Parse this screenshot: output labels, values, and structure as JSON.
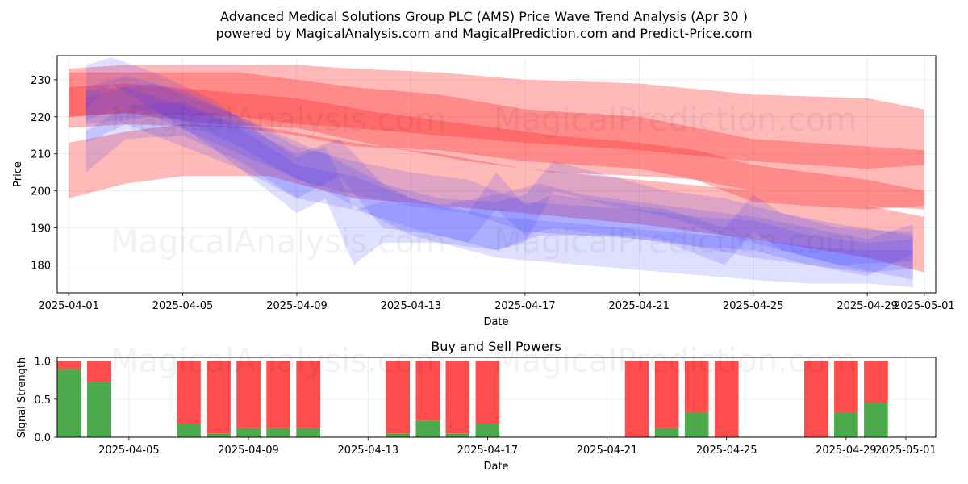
{
  "chart_data": [
    {
      "type": "area",
      "title_line1": "Advanced Medical Solutions Group PLC (AMS) Price Wave Trend Analysis (Apr 30 )",
      "title_line2": "powered by MagicalAnalysis.com and MagicalPrediction.com and Predict-Price.com",
      "xlabel": "Date",
      "ylabel": "Price",
      "x_ticks": [
        "2025-04-01",
        "2025-04-05",
        "2025-04-09",
        "2025-04-13",
        "2025-04-17",
        "2025-04-21",
        "2025-04-25",
        "2025-04-29",
        "2025-05-01"
      ],
      "x_tick_days": [
        0,
        4,
        8,
        12,
        16,
        20,
        24,
        28,
        30
      ],
      "xlim": [
        -0.4,
        30.4
      ],
      "y_ticks": [
        180,
        190,
        200,
        210,
        220,
        230
      ],
      "ylim": [
        172.5,
        236.5
      ],
      "watermarks": [
        "MagicalAnalysis.com",
        "MagicalPrediction.com"
      ],
      "red_bands": [
        {
          "x": [
            0,
            2,
            6,
            8,
            10,
            13,
            16,
            20,
            24,
            28,
            30
          ],
          "lower": [
            217,
            218,
            217,
            215,
            212,
            211,
            208,
            206,
            200,
            196,
            195
          ],
          "upper": [
            233,
            234,
            234,
            234,
            233,
            232,
            230,
            229,
            226,
            225,
            222
          ]
        },
        {
          "x": [
            0,
            2,
            6,
            8,
            10,
            13,
            16,
            20,
            24,
            28,
            30
          ],
          "lower": [
            220,
            221,
            220,
            218,
            217,
            215,
            213,
            211,
            208,
            206,
            207
          ],
          "upper": [
            232,
            232,
            232,
            230,
            228,
            226,
            222,
            220,
            214,
            212,
            211
          ]
        },
        {
          "x": [
            0,
            2,
            4,
            7,
            10,
            13,
            16,
            20,
            24,
            28,
            30
          ],
          "lower": [
            198,
            202,
            204,
            204,
            198,
            196,
            194,
            191,
            187,
            182,
            178
          ],
          "upper": [
            213,
            216,
            218,
            217,
            213,
            210,
            206,
            203,
            200,
            196,
            193
          ]
        },
        {
          "x": [
            0,
            2,
            5,
            8,
            11,
            14,
            17,
            20,
            22,
            24,
            28,
            30
          ],
          "lower": [
            220,
            221,
            218,
            217,
            212,
            208,
            205,
            204,
            203,
            197,
            195,
            196
          ],
          "upper": [
            228,
            229,
            227,
            225,
            221,
            218,
            215,
            213,
            211,
            207,
            203,
            200
          ]
        }
      ],
      "blue_bands": [
        {
          "x": [
            0.6,
            1.5,
            3,
            5,
            7,
            8,
            9,
            10,
            11,
            13,
            15,
            16.5,
            18,
            20,
            22,
            24,
            26,
            28,
            29.6
          ],
          "lower": [
            222,
            229,
            222,
            212,
            200,
            194,
            198,
            180,
            186,
            186,
            184,
            188,
            188,
            188,
            185,
            182,
            180,
            177,
            183
          ],
          "upper": [
            234,
            236,
            232,
            225,
            214,
            209,
            212,
            195,
            197,
            196,
            199,
            202,
            199,
            197,
            195,
            193,
            190,
            187,
            191
          ]
        },
        {
          "x": [
            0.6,
            2,
            4,
            6,
            8,
            9.5,
            11,
            13,
            15,
            16,
            17,
            19,
            21,
            23,
            25,
            27,
            29.6
          ],
          "lower": [
            213,
            218,
            212,
            206,
            198,
            204,
            190,
            188,
            184,
            186,
            200,
            196,
            193,
            188,
            184,
            180,
            181
          ],
          "upper": [
            225,
            228,
            223,
            218,
            210,
            214,
            202,
            198,
            197,
            199,
            208,
            204,
            200,
            198,
            194,
            190,
            189
          ]
        },
        {
          "x": [
            0.6,
            2,
            4,
            6,
            8,
            10,
            12,
            14,
            16,
            18,
            20,
            22,
            24,
            26,
            28,
            29.6
          ],
          "lower": [
            219,
            223,
            219,
            212,
            203,
            199,
            196,
            194,
            189,
            188,
            187,
            185,
            184,
            180,
            178,
            179
          ],
          "upper": [
            228,
            231,
            227,
            220,
            212,
            208,
            205,
            203,
            197,
            196,
            195,
            193,
            192,
            188,
            186,
            187
          ]
        },
        {
          "x": [
            0.6,
            2,
            4,
            6,
            8,
            10,
            12,
            14,
            15,
            16,
            17,
            19,
            21,
            23,
            24,
            25,
            27,
            29.6
          ],
          "lower": [
            205,
            214,
            215,
            208,
            198,
            195,
            190,
            186,
            195,
            188,
            190,
            188,
            186,
            180,
            189,
            184,
            180,
            176
          ],
          "upper": [
            216,
            223,
            224,
            217,
            207,
            204,
            198,
            194,
            205,
            196,
            199,
            197,
            195,
            190,
            199,
            194,
            191,
            188
          ]
        },
        {
          "x": [
            0.6,
            3,
            6,
            9,
            12,
            15,
            18,
            21,
            24,
            26,
            28,
            29.6
          ],
          "lower": [
            218,
            220,
            210,
            200,
            188,
            182,
            180,
            178,
            176,
            175,
            175,
            174
          ],
          "upper": [
            227,
            229,
            220,
            210,
            198,
            193,
            191,
            189,
            187,
            185,
            184,
            184
          ]
        }
      ]
    },
    {
      "type": "bar",
      "title": "Buy and Sell Powers",
      "xlabel": "Date",
      "ylabel": "Signal Strength",
      "x_ticks": [
        "2025-04-05",
        "2025-04-09",
        "2025-04-13",
        "2025-04-17",
        "2025-04-21",
        "2025-04-25",
        "2025-04-29",
        "2025-05-01"
      ],
      "x_tick_days": [
        4,
        8,
        12,
        16,
        20,
        24,
        28,
        30
      ],
      "xlim": [
        1.6,
        31.0
      ],
      "y_ticks": [
        "0.0",
        "0.5",
        "1.0"
      ],
      "ylim": [
        0,
        1.05
      ],
      "buy_color": "#4caa4c",
      "sell_color": "#ff4c4c",
      "bars": [
        {
          "day": 2,
          "buy": 0.89
        },
        {
          "day": 3,
          "buy": 0.73
        },
        {
          "day": 6,
          "buy": 0.17
        },
        {
          "day": 7,
          "buy": 0.05
        },
        {
          "day": 8,
          "buy": 0.12
        },
        {
          "day": 9,
          "buy": 0.12
        },
        {
          "day": 10,
          "buy": 0.12
        },
        {
          "day": 13,
          "buy": 0.05
        },
        {
          "day": 14,
          "buy": 0.22
        },
        {
          "day": 15,
          "buy": 0.05
        },
        {
          "day": 16,
          "buy": 0.17
        },
        {
          "day": 21,
          "buy": 0.0
        },
        {
          "day": 22,
          "buy": 0.12
        },
        {
          "day": 23,
          "buy": 0.33
        },
        {
          "day": 24,
          "buy": 0.0
        },
        {
          "day": 27,
          "buy": 0.0
        },
        {
          "day": 28,
          "buy": 0.33
        },
        {
          "day": 29,
          "buy": 0.45
        }
      ]
    }
  ]
}
